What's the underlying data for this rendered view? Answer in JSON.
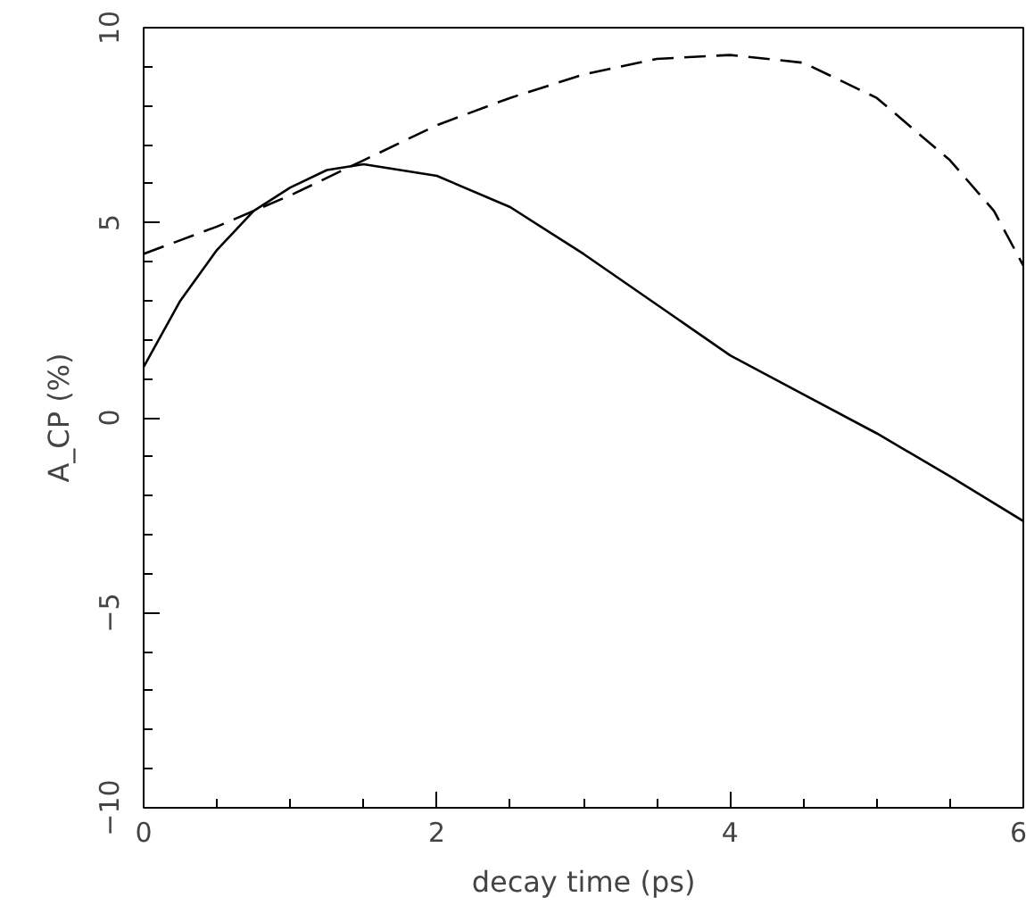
{
  "chart_data": {
    "type": "line",
    "xlabel": "decay time (ps)",
    "ylabel": "A_CP (%)",
    "xlim": [
      0,
      6
    ],
    "ylim": [
      -10,
      10
    ],
    "xticks": [
      0,
      2,
      4,
      6
    ],
    "yticks": [
      -10,
      -5,
      0,
      5,
      10
    ],
    "grid": false,
    "series": [
      {
        "color": "#000000",
        "line_style": "solid",
        "x": [
          0,
          0.25,
          0.5,
          0.75,
          1,
          1.25,
          1.5,
          2,
          2.5,
          3,
          3.5,
          4,
          4.5,
          5,
          5.5,
          6
        ],
        "values": [
          1.3,
          3.0,
          4.3,
          5.3,
          5.9,
          6.35,
          6.5,
          6.2,
          5.4,
          4.2,
          2.9,
          1.6,
          0.6,
          -0.4,
          -1.5,
          -2.65
        ]
      },
      {
        "color": "#000000",
        "line_style": "dashed",
        "x": [
          0,
          0.5,
          1,
          1.5,
          2,
          2.5,
          3,
          3.5,
          4,
          4.5,
          5,
          5.5,
          5.8,
          6
        ],
        "values": [
          4.2,
          4.9,
          5.7,
          6.6,
          7.5,
          8.2,
          8.8,
          9.2,
          9.3,
          9.1,
          8.2,
          6.6,
          5.3,
          3.9
        ]
      }
    ]
  }
}
